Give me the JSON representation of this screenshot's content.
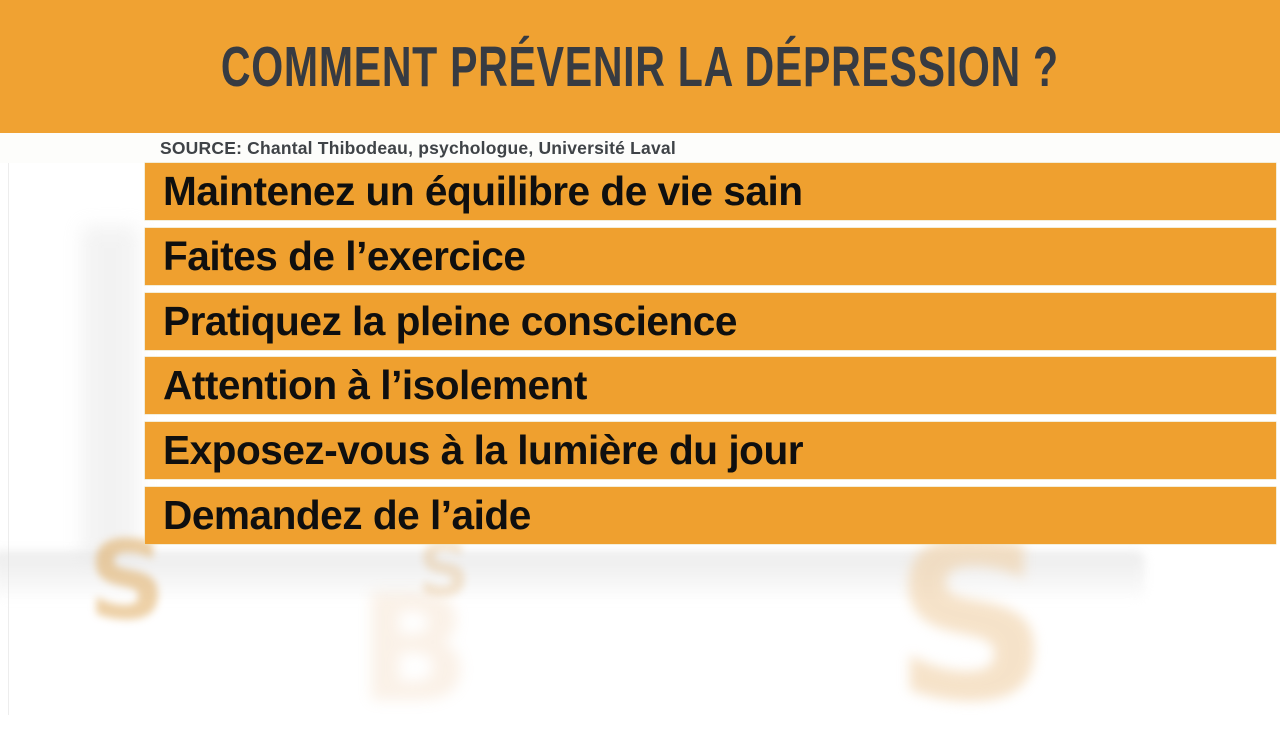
{
  "page": {
    "header": {
      "title": "COMMENT PRÉVENIR LA DÉPRESSION ?"
    },
    "source_line": {
      "label": "SOURCE:",
      "text": "Chantal Thibodeau, psychologue, Université Laval"
    },
    "tips": [
      "Maintenez un équilibre de vie sain",
      "Faites de l’exercice",
      "Pratiquez la pleine conscience",
      "Attention à l’isolement",
      "Exposez-vous à la lumière du jour",
      "Demandez de l’aide"
    ],
    "colors": {
      "header_orange": "#F0A232",
      "bar_orange": "#EFA02F",
      "title_text": "#373B42",
      "source_text": "#3F4347",
      "bar_text": "#0F0F0F",
      "watermark_tan": "#E2B476"
    },
    "watermarks": [
      "S",
      "S",
      "B",
      "S"
    ]
  }
}
